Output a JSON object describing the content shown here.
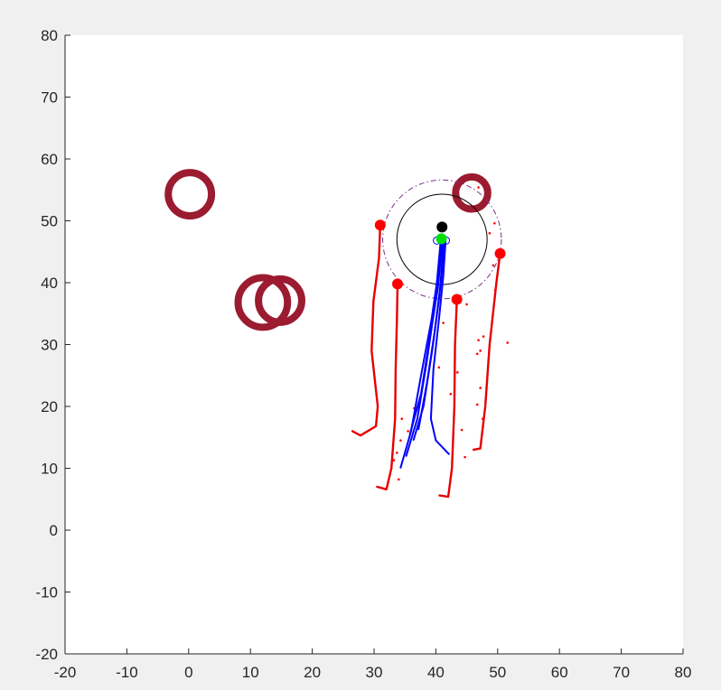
{
  "chart_data": {
    "type": "scatter",
    "title": "",
    "xlabel": "",
    "ylabel": "",
    "xlim": [
      -20,
      80
    ],
    "ylim": [
      -20,
      80
    ],
    "xticks": [
      -20,
      -10,
      0,
      10,
      20,
      30,
      40,
      50,
      60,
      70,
      80
    ],
    "yticks": [
      -20,
      -10,
      0,
      10,
      20,
      30,
      40,
      50,
      60,
      70,
      80
    ],
    "grid": false,
    "legend": "none",
    "colors": {
      "obstacle": "#9b1b30",
      "agent_paths": "#e60000",
      "agent_markers": "#ff0000",
      "swarm_paths": "#0000ff",
      "leader": "#000000",
      "leader_goal": "#00e000",
      "sensing_circle": "#000000",
      "safety_circle": "#7e2f8e"
    },
    "obstacles": [
      {
        "cx": 0.2,
        "cy": 54.3,
        "r": 3.5
      },
      {
        "cx": 12.0,
        "cy": 36.8,
        "r": 4.0
      },
      {
        "cx": 14.8,
        "cy": 37.1,
        "r": 3.5
      },
      {
        "cx": 45.8,
        "cy": 54.5,
        "r": 2.6
      }
    ],
    "agent_paths": [
      {
        "points": [
          [
            26.5,
            16
          ],
          [
            27.8,
            15.3
          ],
          [
            30.3,
            16.8
          ],
          [
            30.6,
            20
          ],
          [
            29.6,
            29
          ],
          [
            29.9,
            37
          ],
          [
            30.8,
            44
          ],
          [
            31,
            49.3
          ]
        ]
      },
      {
        "points": [
          [
            30.5,
            7
          ],
          [
            32,
            6.6
          ],
          [
            32.8,
            10
          ],
          [
            33.4,
            18
          ],
          [
            33.5,
            26
          ],
          [
            33.7,
            34
          ],
          [
            33.8,
            39.8
          ]
        ]
      },
      {
        "points": [
          [
            40.6,
            5.6
          ],
          [
            42,
            5.4
          ],
          [
            42.6,
            10
          ],
          [
            43,
            20
          ],
          [
            43.1,
            30
          ],
          [
            43.4,
            37.3
          ]
        ]
      },
      {
        "points": [
          [
            46.1,
            13
          ],
          [
            47.2,
            13.2
          ],
          [
            48,
            20
          ],
          [
            48.7,
            30
          ],
          [
            49.8,
            40
          ],
          [
            50.4,
            44.7
          ]
        ]
      }
    ],
    "agent_markers": [
      [
        31,
        49.3
      ],
      [
        33.8,
        39.8
      ],
      [
        43.4,
        37.3
      ],
      [
        50.4,
        44.7
      ]
    ],
    "scatter_dots": [
      [
        34.5,
        18
      ],
      [
        36.5,
        19.7
      ],
      [
        35.5,
        16
      ],
      [
        34.3,
        14.5
      ],
      [
        33.7,
        12.5
      ],
      [
        33.2,
        11.3
      ],
      [
        32.8,
        10
      ],
      [
        34,
        8.2
      ],
      [
        41.2,
        33.5
      ],
      [
        40.5,
        26.3
      ],
      [
        42.4,
        22
      ],
      [
        43.5,
        25.5
      ],
      [
        44.2,
        16.2
      ],
      [
        44.7,
        11.8
      ],
      [
        45,
        36.5
      ],
      [
        47.6,
        18
      ],
      [
        46.7,
        20.3
      ],
      [
        47.2,
        23
      ],
      [
        46.7,
        28.5
      ],
      [
        47.2,
        29
      ],
      [
        46.9,
        30.7
      ],
      [
        47.7,
        31.3
      ],
      [
        51.6,
        30.3
      ],
      [
        49.6,
        38.8
      ],
      [
        49.3,
        42.8
      ],
      [
        48.7,
        48
      ],
      [
        49.5,
        49.6
      ],
      [
        46.9,
        55.4
      ]
    ],
    "swarm_paths": [
      {
        "points": [
          [
            34.3,
            10.1
          ],
          [
            36,
            16
          ],
          [
            37.6,
            25
          ],
          [
            39.3,
            34
          ],
          [
            40.3,
            41
          ],
          [
            40.9,
            47
          ]
        ]
      },
      {
        "points": [
          [
            35.2,
            12
          ],
          [
            37,
            18
          ],
          [
            38.5,
            27
          ],
          [
            39.8,
            36
          ],
          [
            40.8,
            47
          ]
        ]
      },
      {
        "points": [
          [
            35.8,
            15.5
          ],
          [
            37.6,
            22
          ],
          [
            39,
            31
          ],
          [
            40.3,
            39
          ],
          [
            41.1,
            47
          ]
        ]
      },
      {
        "points": [
          [
            36.4,
            14.6
          ],
          [
            38,
            20
          ],
          [
            39.4,
            29
          ],
          [
            40.6,
            38
          ],
          [
            41.3,
            47
          ]
        ]
      },
      {
        "points": [
          [
            37.2,
            16.3
          ],
          [
            38.6,
            24
          ],
          [
            39.8,
            32
          ],
          [
            40.8,
            40
          ],
          [
            41.5,
            47
          ]
        ]
      },
      {
        "points": [
          [
            42.1,
            12.3
          ],
          [
            40,
            14.5
          ],
          [
            39.2,
            18
          ],
          [
            39.6,
            26
          ],
          [
            40.5,
            34
          ],
          [
            41.2,
            41
          ],
          [
            41.6,
            47
          ]
        ]
      }
    ],
    "leader": {
      "x": 41.0,
      "y": 49.0
    },
    "leader_goal": {
      "x": 40.9,
      "y": 47.1
    },
    "sensing_circle": {
      "cx": 41.0,
      "cy": 47.0,
      "r": 7.3
    },
    "safety_circle": {
      "cx": 41.0,
      "cy": 47.0,
      "r": 9.6
    }
  }
}
